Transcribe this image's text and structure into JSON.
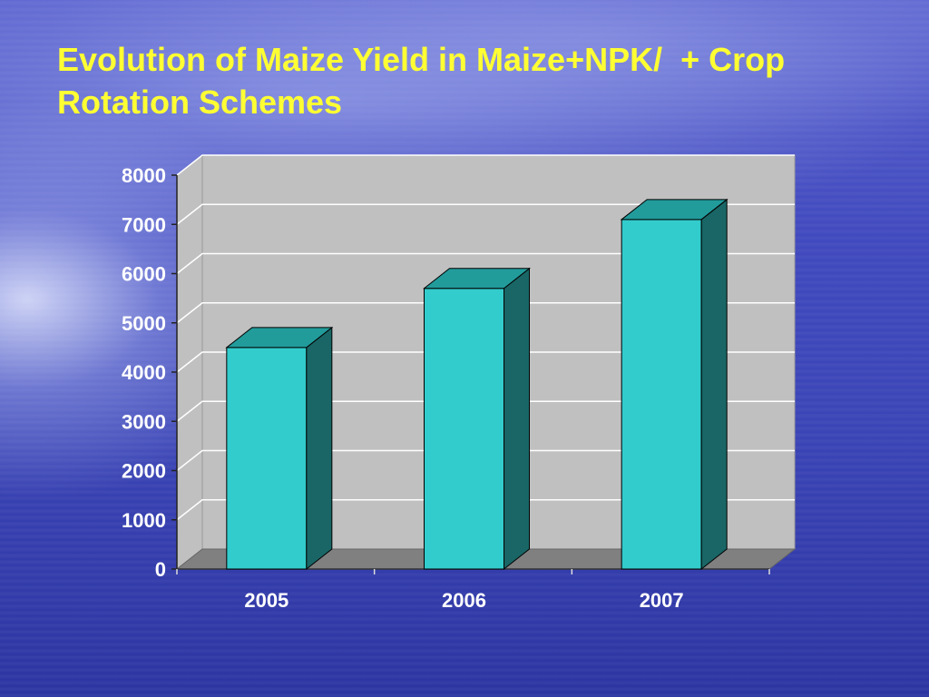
{
  "chart_data": {
    "type": "bar",
    "title": "Evolution of Maize Yield in Maize+NPK/  + Crop Rotation Schemes",
    "categories": [
      "2005",
      "2006",
      "2007"
    ],
    "values": [
      4500,
      5700,
      7100
    ],
    "ylim": [
      0,
      8000
    ],
    "yticks": [
      0,
      1000,
      2000,
      3000,
      4000,
      5000,
      6000,
      7000,
      8000
    ],
    "xlabel": "",
    "ylabel": "",
    "grid": true,
    "legend": "none",
    "three_d": true,
    "colors": {
      "bar_front": "#33cccc",
      "bar_top": "#229b9b",
      "bar_side": "#1a6666",
      "wall": "#c0c0c0",
      "floor": "#808080",
      "gridline": "#ffffff",
      "title": "#ffff33",
      "labels": "#ffffff"
    }
  }
}
